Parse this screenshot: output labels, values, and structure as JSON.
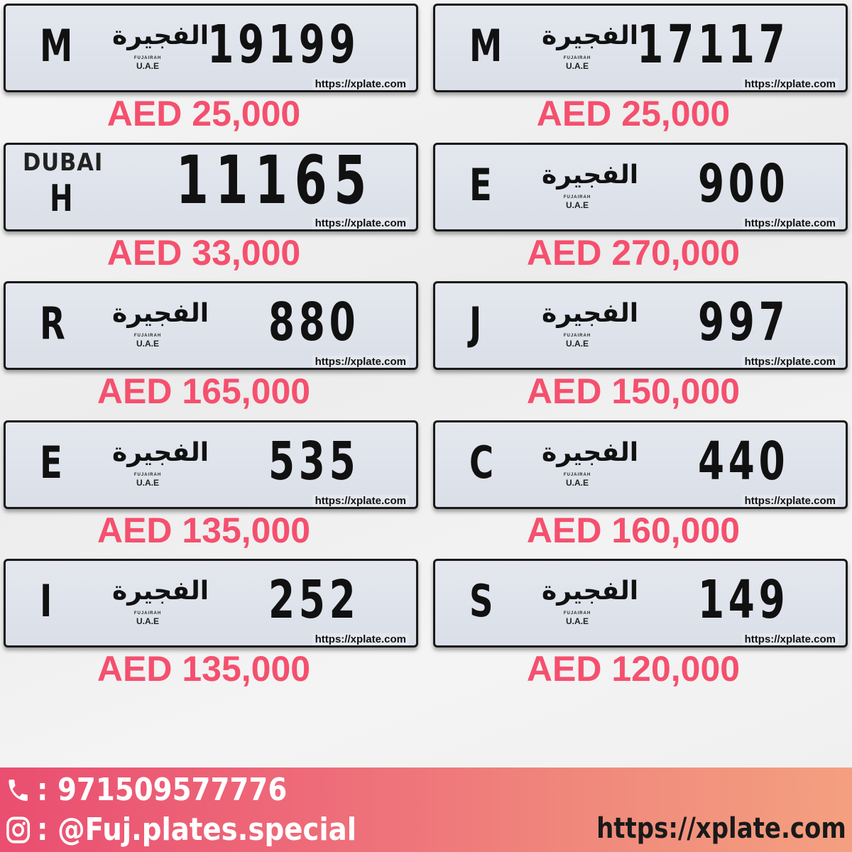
{
  "plates": [
    {
      "letter": "M",
      "number": "19199",
      "price": "AED 25,000"
    },
    {
      "letter": "M",
      "number": "17117",
      "price": "AED 25,000"
    },
    {
      "letter": "H",
      "number": "11165",
      "price": "AED 33,000",
      "emirate": "DUBAI"
    },
    {
      "letter": "E",
      "number": "900",
      "price": "AED 270,000"
    },
    {
      "letter": "R",
      "number": "880",
      "price": "AED 165,000"
    },
    {
      "letter": "J",
      "number": "997",
      "price": "AED 150,000"
    },
    {
      "letter": "E",
      "number": "535",
      "price": "AED 135,000"
    },
    {
      "letter": "C",
      "number": "440",
      "price": "AED 160,000"
    },
    {
      "letter": "I",
      "number": "252",
      "price": "AED 135,000"
    },
    {
      "letter": "S",
      "number": "149",
      "price": "AED 120,000"
    }
  ],
  "emblem": {
    "arabic": "الفجيرة",
    "english": "FUJAIRAH",
    "country": "U.A.E"
  },
  "watermark": "https://xplate.com",
  "footer": {
    "phone_icon": "phone-icon",
    "phone": ": 971509577776",
    "instagram_icon": "instagram-icon",
    "instagram": ": @Fuj.plates.special",
    "url": "https://xplate.com"
  },
  "colors": {
    "price": "#f5506e",
    "footer_start": "#ea4e70",
    "footer_end": "#f4a080"
  }
}
